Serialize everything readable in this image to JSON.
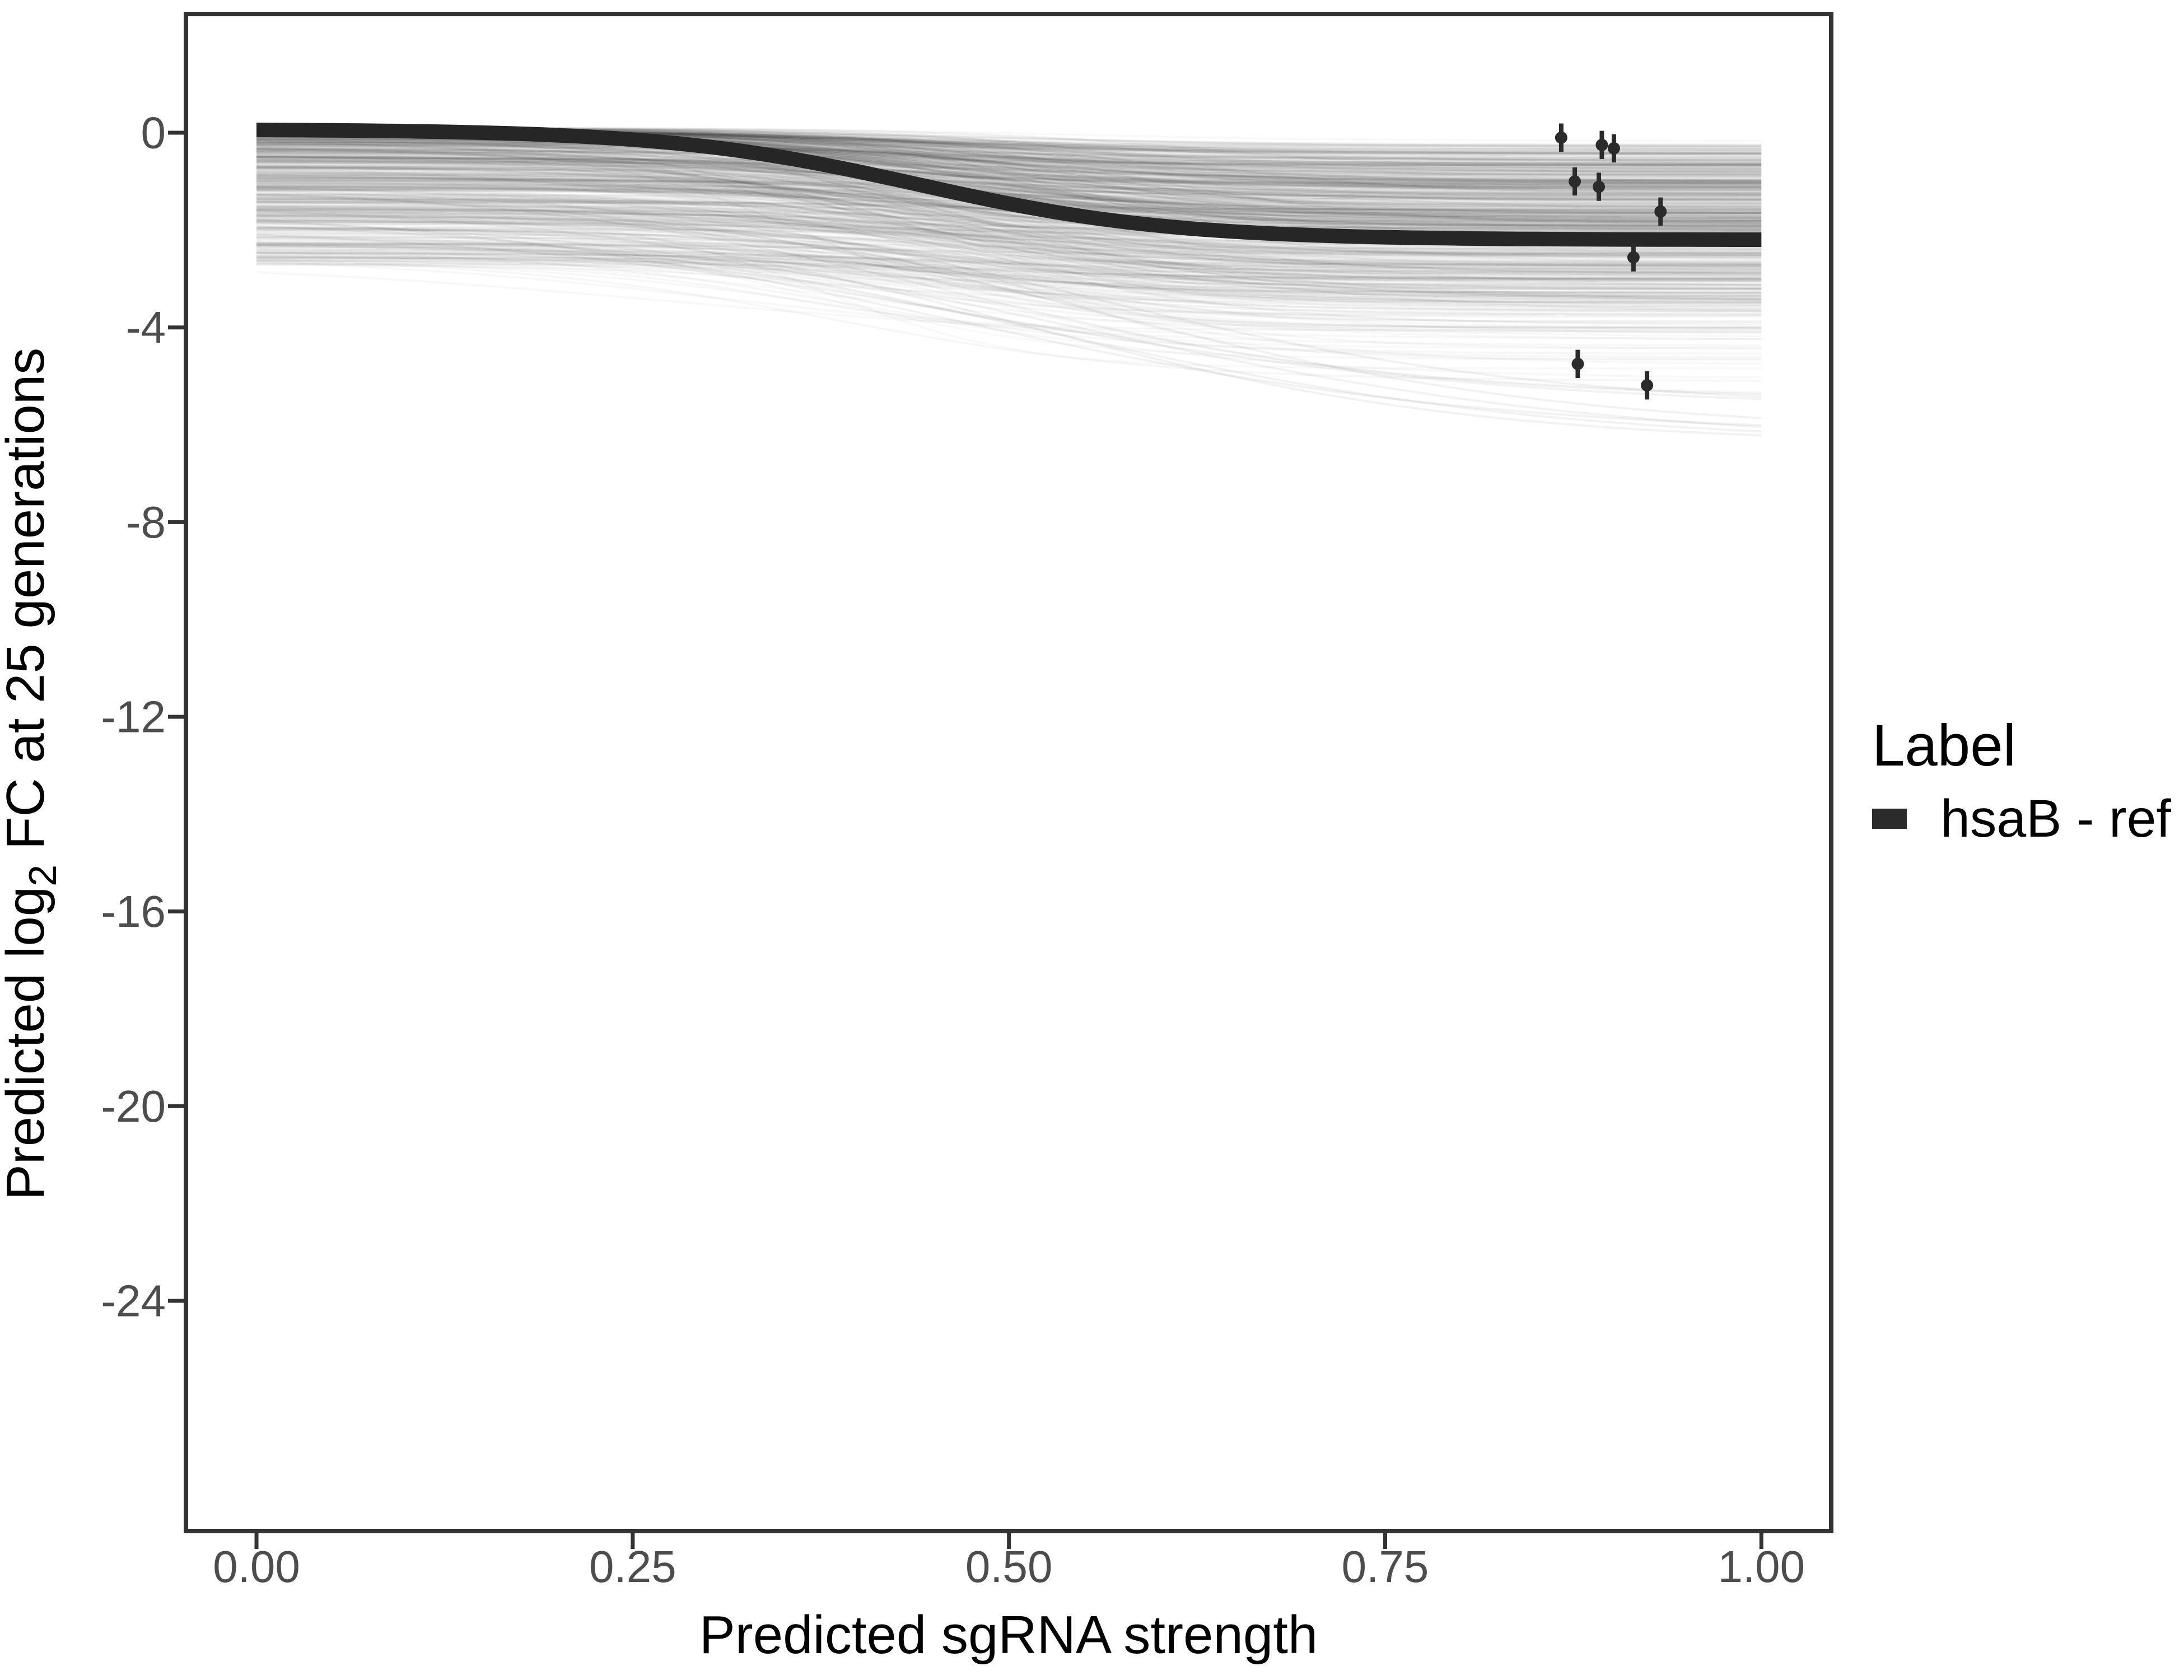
{
  "chart_data": {
    "type": "line",
    "title": "",
    "xlabel": "Predicted sgRNA strength",
    "ylabel_parts": [
      "Predicted  log",
      "2",
      " FC at 25 generations"
    ],
    "x_ticks": [
      {
        "v": 0.0,
        "label": "0.00"
      },
      {
        "v": 0.25,
        "label": "0.25"
      },
      {
        "v": 0.5,
        "label": "0.50"
      },
      {
        "v": 0.75,
        "label": "0.75"
      },
      {
        "v": 1.0,
        "label": "1.00"
      }
    ],
    "y_ticks": [
      {
        "v": 0,
        "label": "0"
      },
      {
        "v": -4,
        "label": "-4"
      },
      {
        "v": -8,
        "label": "-8"
      },
      {
        "v": -12,
        "label": "-12"
      },
      {
        "v": -16,
        "label": "-16"
      },
      {
        "v": -20,
        "label": "-20"
      },
      {
        "v": -24,
        "label": "-24"
      }
    ],
    "x_domain": [
      -0.0469,
      1.0464
    ],
    "y_domain": [
      -28.73,
      2.44
    ],
    "grid": false,
    "legend": {
      "title": "Label",
      "position": "right",
      "items": [
        {
          "label": "hsaB - ref",
          "color": "#2b2b2b",
          "key": "thick-line"
        }
      ]
    },
    "mean_curve": {
      "name": "hsaB - ref posterior mean",
      "shape": "sigmoid",
      "baseline": 0.07,
      "amplitude": 2.27,
      "midpoint": 0.44,
      "steepness": 12,
      "value_at_0": 0.05,
      "value_at_1": -2.2,
      "x_range": [
        0,
        1
      ]
    },
    "spaghetti": {
      "description": "posterior draw sigmoid curves, black at low alpha forming gray band",
      "count": 650,
      "outlier_count": 8,
      "band_at_x0": [
        0.1,
        -2.7
      ],
      "band_at_x1_dense": [
        -0.2,
        -3.9
      ],
      "band_at_x1_faint_min": -6.4,
      "x_range": [
        0,
        1
      ]
    },
    "points": {
      "name": "observed sgRNA fitness with error bars",
      "error_halfheight": 0.29,
      "data": [
        {
          "x": 0.867,
          "y": -0.1
        },
        {
          "x": 0.894,
          "y": -0.25
        },
        {
          "x": 0.902,
          "y": -0.32
        },
        {
          "x": 0.876,
          "y": -1.0
        },
        {
          "x": 0.892,
          "y": -1.11
        },
        {
          "x": 0.933,
          "y": -1.62
        },
        {
          "x": 0.915,
          "y": -2.56
        },
        {
          "x": 0.878,
          "y": -4.75
        },
        {
          "x": 0.924,
          "y": -5.19
        }
      ]
    },
    "colors": {
      "mean_curve": "#262626",
      "points": "#2b2b2b",
      "axis": "#333333",
      "tick_label": "#4d4d4d",
      "title_text": "#000000",
      "panel_bg": "#ffffff",
      "draws": "#000000"
    }
  }
}
